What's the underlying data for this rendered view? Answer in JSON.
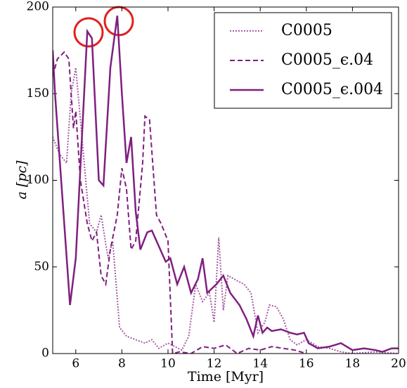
{
  "chart_data": {
    "type": "line",
    "xlabel": "Time [Myr]",
    "ylabel": "a [pc]",
    "xlim": [
      5,
      20
    ],
    "xticks": [
      6,
      8,
      10,
      12,
      14,
      16,
      18,
      20
    ],
    "ylim": [
      0,
      200
    ],
    "yticks": [
      0,
      50,
      100,
      150,
      200
    ],
    "legend": "upper right",
    "series": [
      {
        "name": "C0005",
        "color": "#a45ca4",
        "linestyle": "dotted",
        "x": [
          5,
          5.3,
          5.6,
          5.8,
          6.0,
          6.3,
          6.6,
          6.9,
          7.1,
          7.4,
          7.6,
          7.9,
          8.2,
          8.6,
          9.0,
          9.3,
          9.6,
          10.0,
          10.3,
          10.6,
          10.9,
          11.2,
          11.5,
          11.8,
          12.0,
          12.2,
          12.4,
          12.6,
          13.0,
          13.3,
          13.6,
          13.9,
          14.2,
          14.4,
          14.7,
          15.0,
          15.3,
          15.6,
          16.0,
          16.5,
          17,
          17.5,
          18,
          19,
          20
        ],
        "values": [
          125,
          115,
          110,
          150,
          165,
          120,
          75,
          70,
          80,
          55,
          65,
          15,
          10,
          8,
          6,
          8,
          3,
          6,
          4,
          2,
          10,
          40,
          30,
          35,
          18,
          67,
          25,
          45,
          42,
          40,
          35,
          12,
          18,
          28,
          27,
          20,
          8,
          5,
          8,
          4,
          3,
          1,
          0,
          1,
          0
        ]
      },
      {
        "name": "C0005_ϵ.04",
        "color": "#7f1f7f",
        "linestyle": "dashed",
        "x": [
          5,
          5.2,
          5.5,
          5.7,
          5.9,
          6.0,
          6.2,
          6.5,
          6.7,
          6.9,
          7.1,
          7.3,
          7.5,
          7.8,
          8.0,
          8.2,
          8.4,
          8.6,
          8.9,
          9.0,
          9.2,
          9.5,
          9.7,
          10.0,
          10.2,
          10.5,
          11,
          11.5,
          12,
          12.5,
          13,
          13.5,
          14,
          14.5,
          15,
          15.5,
          16
        ],
        "values": [
          160,
          170,
          174,
          170,
          130,
          140,
          100,
          75,
          65,
          70,
          45,
          40,
          60,
          80,
          107,
          95,
          60,
          65,
          110,
          137,
          135,
          80,
          75,
          65,
          0,
          1,
          0,
          4,
          3,
          5,
          0,
          3,
          2,
          4,
          3,
          2,
          0
        ]
      },
      {
        "name": "C0005_ϵ.004",
        "color": "#7f1f7f",
        "linestyle": "solid",
        "x": [
          5,
          5.1,
          5.75,
          6.0,
          6.5,
          6.7,
          7.0,
          7.2,
          7.5,
          7.8,
          8.0,
          8.2,
          8.4,
          8.6,
          8.8,
          9.1,
          9.3,
          9.6,
          9.9,
          10.1,
          10.4,
          10.7,
          11.0,
          11.3,
          11.5,
          11.7,
          12.1,
          12.4,
          12.7,
          13.1,
          13.4,
          13.7,
          13.9,
          14.1,
          14.3,
          14.5,
          14.9,
          15.3,
          15.6,
          15.9,
          16.1,
          16.5,
          17,
          17.5,
          18,
          18.5,
          19,
          19.3,
          19.7,
          20
        ],
        "values": [
          175,
          150,
          28,
          55,
          186,
          182,
          100,
          97,
          165,
          195,
          150,
          110,
          125,
          82,
          60,
          70,
          71,
          62,
          53,
          55,
          40,
          50,
          35,
          43,
          55,
          35,
          40,
          45,
          35,
          28,
          20,
          10,
          22,
          12,
          15,
          13,
          14,
          12,
          11,
          12,
          6,
          3,
          4,
          6,
          2,
          3,
          2,
          1,
          3,
          3
        ]
      }
    ]
  }
}
